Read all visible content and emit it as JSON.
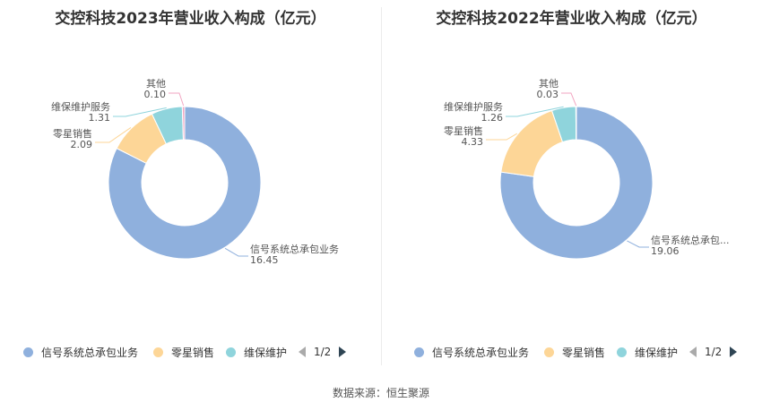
{
  "colors": {
    "signal": "#8fb0dd",
    "retail": "#fdd697",
    "maint": "#8fd4dc",
    "other": "#f2a6c2",
    "line": "#b0b0b0"
  },
  "charts": [
    {
      "title": "交控科技2023年营业收入构成（亿元）",
      "legend": [
        "信号系统总承包业务",
        "零星销售",
        "维保维护"
      ],
      "pager": "1/2"
    },
    {
      "title": "交控科技2022年营业收入构成（亿元）",
      "legend": [
        "信号系统总承包业务",
        "零星销售",
        "维保维护"
      ],
      "pager": "1/2"
    }
  ],
  "chart_data": [
    {
      "type": "pie",
      "title": "交控科技2023年营业收入构成（亿元）",
      "slices": [
        {
          "name": "信号系统总承包业务",
          "label": "信号系统总承包业务",
          "value": 16.45,
          "value_text": "16.45",
          "color": "#8fb0dd"
        },
        {
          "name": "零星销售",
          "label": "零星销售",
          "value": 2.09,
          "value_text": "2.09",
          "color": "#fdd697"
        },
        {
          "name": "维保维护服务",
          "label": "维保维护服务",
          "value": 1.31,
          "value_text": "1.31",
          "color": "#8fd4dc"
        },
        {
          "name": "其他",
          "label": "其他",
          "value": 0.1,
          "value_text": "0.10",
          "color": "#f2a6c2"
        }
      ]
    },
    {
      "type": "pie",
      "title": "交控科技2022年营业收入构成（亿元）",
      "slices": [
        {
          "name": "信号系统总承包业务",
          "label": "信号系统总承包...",
          "value": 19.06,
          "value_text": "19.06",
          "color": "#8fb0dd"
        },
        {
          "name": "零星销售",
          "label": "零星销售",
          "value": 4.33,
          "value_text": "4.33",
          "color": "#fdd697"
        },
        {
          "name": "维保维护服务",
          "label": "维保维护服务",
          "value": 1.26,
          "value_text": "1.26",
          "color": "#8fd4dc"
        },
        {
          "name": "其他",
          "label": "其他",
          "value": 0.03,
          "value_text": "0.03",
          "color": "#f2a6c2"
        }
      ]
    }
  ],
  "source": "数据来源：恒生聚源"
}
